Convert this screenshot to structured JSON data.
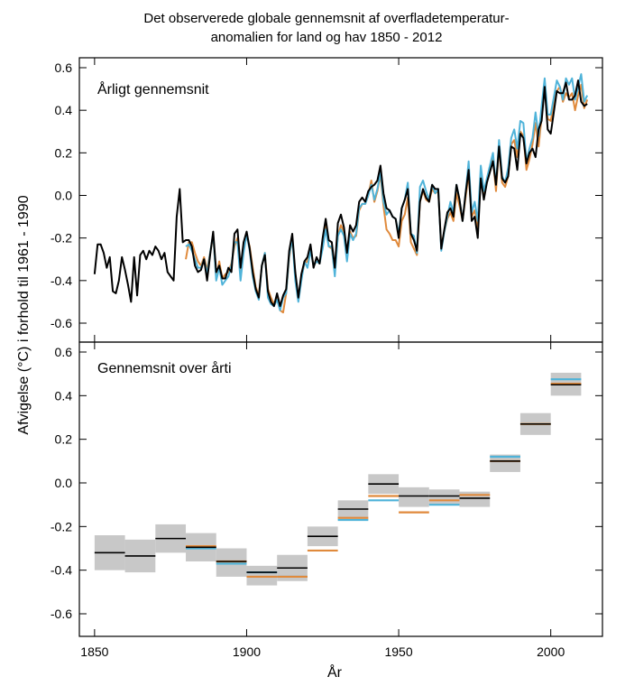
{
  "title_line1": "Det observerede globale gennemsnit af overfladetemperatur-",
  "title_line2": "anomalien for land og hav 1850 - 2012",
  "ylabel": "Afvigelse (°C) i forhold til 1961 - 1990",
  "xlabel": "År",
  "colors": {
    "series_black": "#000000",
    "series_blue": "#4fb3d9",
    "series_orange": "#e08a3c",
    "box_gray": "#c8c8c8"
  },
  "chart_data": [
    {
      "type": "line",
      "panel_label": "Årligt gennemsnit",
      "xlim": [
        1845,
        2017
      ],
      "ylim": [
        -0.7,
        0.65
      ],
      "yticks": [
        -0.6,
        -0.4,
        -0.2,
        0.0,
        0.2,
        0.4,
        0.6
      ],
      "ytick_labels": [
        "-0.6",
        "-0.4",
        "-0.2",
        "0.0",
        "0.2",
        "0.4",
        "0.6"
      ],
      "series": [
        {
          "color": "#000000",
          "x": [
            1850,
            1851,
            1852,
            1853,
            1854,
            1855,
            1856,
            1857,
            1858,
            1859,
            1860,
            1861,
            1862,
            1863,
            1864,
            1865,
            1866,
            1867,
            1868,
            1869,
            1870,
            1871,
            1872,
            1873,
            1874,
            1875,
            1876,
            1877,
            1878,
            1879,
            1880,
            1881,
            1882,
            1883,
            1884,
            1885,
            1886,
            1887,
            1888,
            1889,
            1890,
            1891,
            1892,
            1893,
            1894,
            1895,
            1896,
            1897,
            1898,
            1899,
            1900,
            1901,
            1902,
            1903,
            1904,
            1905,
            1906,
            1907,
            1908,
            1909,
            1910,
            1911,
            1912,
            1913,
            1914,
            1915,
            1916,
            1917,
            1918,
            1919,
            1920,
            1921,
            1922,
            1923,
            1924,
            1925,
            1926,
            1927,
            1928,
            1929,
            1930,
            1931,
            1932,
            1933,
            1934,
            1935,
            1936,
            1937,
            1938,
            1939,
            1940,
            1941,
            1942,
            1943,
            1944,
            1945,
            1946,
            1947,
            1948,
            1949,
            1950,
            1951,
            1952,
            1953,
            1954,
            1955,
            1956,
            1957,
            1958,
            1959,
            1960,
            1961,
            1962,
            1963,
            1964,
            1965,
            1966,
            1967,
            1968,
            1969,
            1970,
            1971,
            1972,
            1973,
            1974,
            1975,
            1976,
            1977,
            1978,
            1979,
            1980,
            1981,
            1982,
            1983,
            1984,
            1985,
            1986,
            1987,
            1988,
            1989,
            1990,
            1991,
            1992,
            1993,
            1994,
            1995,
            1996,
            1997,
            1998,
            1999,
            2000,
            2001,
            2002,
            2003,
            2004,
            2005,
            2006,
            2007,
            2008,
            2009,
            2010,
            2011,
            2012
          ],
          "y": [
            -0.37,
            -0.23,
            -0.23,
            -0.27,
            -0.34,
            -0.29,
            -0.45,
            -0.46,
            -0.4,
            -0.29,
            -0.35,
            -0.42,
            -0.5,
            -0.29,
            -0.47,
            -0.28,
            -0.26,
            -0.3,
            -0.26,
            -0.28,
            -0.24,
            -0.26,
            -0.3,
            -0.27,
            -0.36,
            -0.38,
            -0.4,
            -0.1,
            0.03,
            -0.22,
            -0.21,
            -0.21,
            -0.24,
            -0.33,
            -0.36,
            -0.35,
            -0.3,
            -0.4,
            -0.28,
            -0.17,
            -0.36,
            -0.33,
            -0.39,
            -0.39,
            -0.34,
            -0.36,
            -0.18,
            -0.16,
            -0.34,
            -0.22,
            -0.17,
            -0.25,
            -0.36,
            -0.44,
            -0.48,
            -0.33,
            -0.28,
            -0.45,
            -0.5,
            -0.52,
            -0.46,
            -0.52,
            -0.47,
            -0.44,
            -0.26,
            -0.18,
            -0.36,
            -0.48,
            -0.37,
            -0.31,
            -0.29,
            -0.23,
            -0.34,
            -0.29,
            -0.32,
            -0.2,
            -0.11,
            -0.21,
            -0.22,
            -0.34,
            -0.13,
            -0.09,
            -0.15,
            -0.27,
            -0.14,
            -0.17,
            -0.14,
            -0.03,
            -0.01,
            -0.03,
            0.02,
            0.04,
            0.05,
            0.07,
            0.14,
            0.01,
            -0.06,
            -0.07,
            -0.1,
            -0.11,
            -0.2,
            -0.06,
            -0.02,
            0.03,
            -0.18,
            -0.21,
            -0.26,
            -0.03,
            0.03,
            -0.01,
            -0.03,
            0.05,
            0.03,
            0.03,
            -0.25,
            -0.16,
            -0.08,
            -0.06,
            -0.1,
            0.05,
            -0.02,
            -0.12,
            0.01,
            0.12,
            -0.12,
            -0.1,
            -0.2,
            0.08,
            -0.02,
            0.06,
            0.11,
            0.16,
            0.05,
            0.23,
            0.08,
            0.06,
            0.09,
            0.23,
            0.22,
            0.12,
            0.29,
            0.27,
            0.15,
            0.2,
            0.22,
            0.18,
            0.31,
            0.35,
            0.51,
            0.31,
            0.29,
            0.39,
            0.49,
            0.48,
            0.48,
            0.53,
            0.45,
            0.45,
            0.47,
            0.54,
            0.44,
            0.42,
            0.43
          ]
        },
        {
          "color": "#4fb3d9",
          "x": [
            1880,
            1881,
            1882,
            1883,
            1884,
            1885,
            1886,
            1887,
            1888,
            1889,
            1890,
            1891,
            1892,
            1893,
            1894,
            1895,
            1896,
            1897,
            1898,
            1899,
            1900,
            1901,
            1902,
            1903,
            1904,
            1905,
            1906,
            1907,
            1908,
            1909,
            1910,
            1911,
            1912,
            1913,
            1914,
            1915,
            1916,
            1917,
            1918,
            1919,
            1920,
            1921,
            1922,
            1923,
            1924,
            1925,
            1926,
            1927,
            1928,
            1929,
            1930,
            1931,
            1932,
            1933,
            1934,
            1935,
            1936,
            1937,
            1938,
            1939,
            1940,
            1941,
            1942,
            1943,
            1944,
            1945,
            1946,
            1947,
            1948,
            1949,
            1950,
            1951,
            1952,
            1953,
            1954,
            1955,
            1956,
            1957,
            1958,
            1959,
            1960,
            1961,
            1962,
            1963,
            1964,
            1965,
            1966,
            1967,
            1968,
            1969,
            1970,
            1971,
            1972,
            1973,
            1974,
            1975,
            1976,
            1977,
            1978,
            1979,
            1980,
            1981,
            1982,
            1983,
            1984,
            1985,
            1986,
            1987,
            1988,
            1989,
            1990,
            1991,
            1992,
            1993,
            1994,
            1995,
            1996,
            1997,
            1998,
            1999,
            2000,
            2001,
            2002,
            2003,
            2004,
            2005,
            2006,
            2007,
            2008,
            2009,
            2010,
            2011,
            2012
          ],
          "y": [
            -0.24,
            -0.23,
            -0.26,
            -0.3,
            -0.34,
            -0.34,
            -0.3,
            -0.37,
            -0.27,
            -0.18,
            -0.4,
            -0.34,
            -0.42,
            -0.4,
            -0.38,
            -0.33,
            -0.22,
            -0.22,
            -0.4,
            -0.27,
            -0.18,
            -0.26,
            -0.38,
            -0.45,
            -0.49,
            -0.33,
            -0.27,
            -0.48,
            -0.51,
            -0.52,
            -0.49,
            -0.54,
            -0.48,
            -0.46,
            -0.28,
            -0.2,
            -0.4,
            -0.5,
            -0.4,
            -0.31,
            -0.34,
            -0.26,
            -0.33,
            -0.31,
            -0.32,
            -0.25,
            -0.16,
            -0.24,
            -0.24,
            -0.38,
            -0.19,
            -0.16,
            -0.19,
            -0.31,
            -0.18,
            -0.21,
            -0.18,
            -0.06,
            -0.04,
            -0.04,
            0.0,
            0.05,
            -0.02,
            0.03,
            0.11,
            -0.03,
            -0.09,
            -0.07,
            -0.1,
            -0.11,
            -0.18,
            -0.06,
            -0.02,
            0.06,
            -0.18,
            -0.19,
            -0.27,
            0.04,
            0.07,
            0.02,
            -0.02,
            0.05,
            0.01,
            0.03,
            -0.26,
            -0.17,
            -0.1,
            -0.03,
            -0.08,
            0.05,
            -0.02,
            -0.12,
            0.01,
            0.16,
            -0.08,
            -0.03,
            -0.12,
            0.14,
            0.02,
            0.08,
            0.14,
            0.2,
            0.05,
            0.26,
            0.09,
            0.06,
            0.13,
            0.27,
            0.31,
            0.22,
            0.35,
            0.34,
            0.16,
            0.22,
            0.27,
            0.39,
            0.28,
            0.42,
            0.55,
            0.38,
            0.38,
            0.46,
            0.54,
            0.51,
            0.45,
            0.55,
            0.52,
            0.55,
            0.45,
            0.51,
            0.57,
            0.44,
            0.47
          ]
        },
        {
          "color": "#e08a3c",
          "x": [
            1880,
            1881,
            1882,
            1883,
            1884,
            1885,
            1886,
            1887,
            1888,
            1889,
            1890,
            1891,
            1892,
            1893,
            1894,
            1895,
            1896,
            1897,
            1898,
            1899,
            1900,
            1901,
            1902,
            1903,
            1904,
            1905,
            1906,
            1907,
            1908,
            1909,
            1910,
            1911,
            1912,
            1913,
            1914,
            1915,
            1916,
            1917,
            1918,
            1919,
            1920,
            1921,
            1922,
            1923,
            1924,
            1925,
            1926,
            1927,
            1928,
            1929,
            1930,
            1931,
            1932,
            1933,
            1934,
            1935,
            1936,
            1937,
            1938,
            1939,
            1940,
            1941,
            1942,
            1943,
            1944,
            1945,
            1946,
            1947,
            1948,
            1949,
            1950,
            1951,
            1952,
            1953,
            1954,
            1955,
            1956,
            1957,
            1958,
            1959,
            1960,
            1961,
            1962,
            1963,
            1964,
            1965,
            1966,
            1967,
            1968,
            1969,
            1970,
            1971,
            1972,
            1973,
            1974,
            1975,
            1976,
            1977,
            1978,
            1979,
            1980,
            1981,
            1982,
            1983,
            1984,
            1985,
            1986,
            1987,
            1988,
            1989,
            1990,
            1991,
            1992,
            1993,
            1994,
            1995,
            1996,
            1997,
            1998,
            1999,
            2000,
            2001,
            2002,
            2003,
            2004,
            2005,
            2006,
            2007,
            2008,
            2009,
            2010,
            2011,
            2012
          ],
          "y": [
            -0.3,
            -0.22,
            -0.22,
            -0.27,
            -0.31,
            -0.33,
            -0.29,
            -0.35,
            -0.27,
            -0.19,
            -0.39,
            -0.31,
            -0.39,
            -0.37,
            -0.36,
            -0.32,
            -0.24,
            -0.2,
            -0.36,
            -0.25,
            -0.19,
            -0.24,
            -0.34,
            -0.43,
            -0.47,
            -0.33,
            -0.27,
            -0.44,
            -0.48,
            -0.51,
            -0.48,
            -0.54,
            -0.55,
            -0.46,
            -0.29,
            -0.2,
            -0.37,
            -0.49,
            -0.39,
            -0.32,
            -0.31,
            -0.24,
            -0.33,
            -0.31,
            -0.32,
            -0.23,
            -0.13,
            -0.24,
            -0.25,
            -0.36,
            -0.19,
            -0.14,
            -0.17,
            -0.29,
            -0.17,
            -0.2,
            -0.19,
            -0.07,
            -0.04,
            -0.04,
            0.0,
            0.07,
            -0.03,
            0.02,
            0.1,
            -0.05,
            -0.16,
            -0.18,
            -0.21,
            -0.21,
            -0.24,
            -0.12,
            -0.09,
            -0.01,
            -0.22,
            -0.25,
            -0.28,
            -0.03,
            0.02,
            -0.02,
            -0.03,
            0.03,
            0.01,
            0.02,
            -0.24,
            -0.17,
            -0.11,
            -0.08,
            -0.12,
            0.01,
            -0.05,
            -0.12,
            -0.01,
            0.1,
            -0.1,
            -0.07,
            -0.15,
            0.11,
            0.0,
            0.06,
            0.13,
            0.17,
            0.02,
            0.23,
            0.06,
            0.04,
            0.09,
            0.24,
            0.26,
            0.18,
            0.3,
            0.28,
            0.12,
            0.17,
            0.24,
            0.34,
            0.23,
            0.37,
            0.52,
            0.36,
            0.35,
            0.43,
            0.49,
            0.51,
            0.44,
            0.48,
            0.46,
            0.48,
            0.4,
            0.47,
            0.52,
            0.41,
            0.45
          ]
        }
      ]
    },
    {
      "type": "bar",
      "panel_label": "Gennemsnit over årti",
      "xlim": [
        1845,
        2017
      ],
      "ylim": [
        -0.7,
        0.65
      ],
      "yticks": [
        -0.6,
        -0.4,
        -0.2,
        0.0,
        0.2,
        0.4,
        0.6
      ],
      "ytick_labels": [
        "-0.6",
        "-0.4",
        "-0.2",
        "0.0",
        "0.2",
        "0.4",
        "0.6"
      ],
      "xticks": [
        1850,
        1900,
        1950,
        2000
      ],
      "xtick_labels": [
        "1850",
        "1900",
        "1950",
        "2000"
      ],
      "decades": [
        {
          "start": 1850,
          "black": -0.32,
          "lo": -0.4,
          "hi": -0.24
        },
        {
          "start": 1860,
          "black": -0.335,
          "lo": -0.41,
          "hi": -0.26
        },
        {
          "start": 1870,
          "black": -0.255,
          "lo": -0.32,
          "hi": -0.19
        },
        {
          "start": 1880,
          "black": -0.295,
          "blue": -0.3,
          "orange": -0.29,
          "lo": -0.36,
          "hi": -0.23
        },
        {
          "start": 1890,
          "black": -0.36,
          "blue": -0.37,
          "orange": -0.36,
          "lo": -0.43,
          "hi": -0.3
        },
        {
          "start": 1900,
          "black": -0.41,
          "blue": -0.41,
          "orange": -0.43,
          "lo": -0.47,
          "hi": -0.38
        },
        {
          "start": 1910,
          "black": -0.39,
          "blue": -0.43,
          "orange": -0.43,
          "lo": -0.45,
          "hi": -0.33
        },
        {
          "start": 1920,
          "black": -0.245,
          "orange": -0.31,
          "lo": -0.29,
          "hi": -0.2
        },
        {
          "start": 1930,
          "black": -0.12,
          "blue": -0.17,
          "orange": -0.16,
          "lo": -0.17,
          "hi": -0.08
        },
        {
          "start": 1940,
          "black": -0.005,
          "blue": -0.08,
          "orange": -0.06,
          "lo": -0.05,
          "hi": 0.04
        },
        {
          "start": 1950,
          "black": -0.06,
          "orange": -0.135,
          "lo": -0.11,
          "hi": -0.02
        },
        {
          "start": 1960,
          "black": -0.06,
          "blue": -0.1,
          "orange": -0.08,
          "lo": -0.1,
          "hi": -0.03
        },
        {
          "start": 1970,
          "black": -0.07,
          "orange": -0.055,
          "lo": -0.11,
          "hi": -0.04
        },
        {
          "start": 1980,
          "black": 0.1,
          "blue": 0.12,
          "orange": 0.1,
          "lo": 0.05,
          "hi": 0.13
        },
        {
          "start": 1990,
          "black": 0.27,
          "blue": 0.27,
          "orange": 0.27,
          "lo": 0.22,
          "hi": 0.32
        },
        {
          "start": 2000,
          "black": 0.45,
          "blue": 0.475,
          "orange": 0.455,
          "lo": 0.4,
          "hi": 0.505
        }
      ]
    }
  ]
}
